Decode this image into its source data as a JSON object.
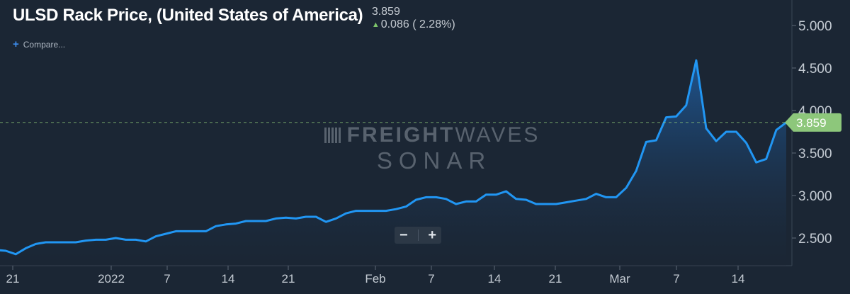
{
  "header": {
    "title": "ULSD Rack Price, (United States of America)",
    "last_price": "3.859",
    "change": "0.086 ( 2.28%)"
  },
  "compare_label": "Compare...",
  "zoom": {
    "minus": "−",
    "plus": "+"
  },
  "watermark": {
    "line1_bold": "FREIGHT",
    "line1_light": "WAVES",
    "line2": "SONAR"
  },
  "colors": {
    "background": "#1b2634",
    "line": "#2196f3",
    "price_tag": "#8dc77b",
    "reference_line": "#8dc77b",
    "up_arrow": "#7dc56b"
  },
  "chart_data": {
    "type": "area",
    "title": "ULSD Rack Price, (United States of America)",
    "xlabel": "",
    "ylabel": "",
    "ylim": [
      2.3,
      5.3
    ],
    "y_ticks": [
      "2.500",
      "3.000",
      "3.500",
      "4.000",
      "4.500",
      "5.000"
    ],
    "x_ticks": [
      "21",
      "2022",
      "7",
      "14",
      "21",
      "Feb",
      "7",
      "14",
      "21",
      "Mar",
      "7",
      "14"
    ],
    "last_value": 3.859,
    "last_value_label": "3.859",
    "grid": false,
    "series": [
      {
        "values": [
          2.36,
          2.35,
          2.31,
          2.38,
          2.43,
          2.45,
          2.45,
          2.45,
          2.45,
          2.47,
          2.48,
          2.48,
          2.5,
          2.48,
          2.48,
          2.46,
          2.52,
          2.55,
          2.58,
          2.58,
          2.58,
          2.58,
          2.64,
          2.66,
          2.67,
          2.7,
          2.7,
          2.7,
          2.73,
          2.74,
          2.73,
          2.75,
          2.75,
          2.69,
          2.73,
          2.79,
          2.82,
          2.82,
          2.82,
          2.82,
          2.84,
          2.87,
          2.95,
          2.98,
          2.98,
          2.96,
          2.9,
          2.93,
          2.93,
          3.01,
          3.01,
          3.05,
          2.96,
          2.95,
          2.9,
          2.9,
          2.9,
          2.92,
          2.94,
          2.96,
          3.02,
          2.98,
          2.98,
          3.09,
          3.29,
          3.63,
          3.65,
          3.92,
          3.93,
          4.06,
          4.59,
          3.79,
          3.64,
          3.75,
          3.75,
          3.62,
          3.39,
          3.43,
          3.77,
          3.86
        ]
      }
    ]
  }
}
